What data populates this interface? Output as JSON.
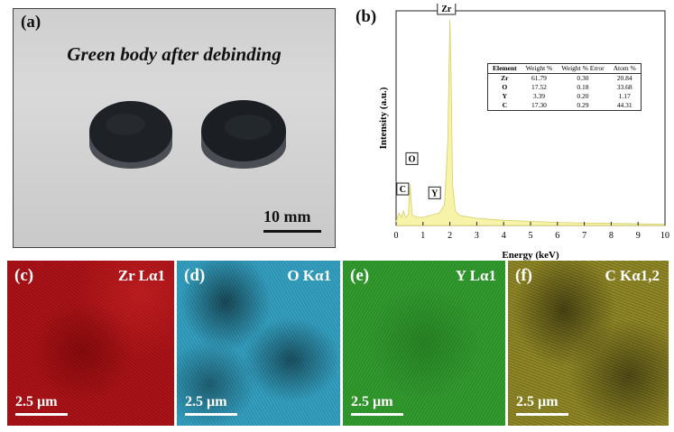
{
  "panel_a": {
    "label": "(a)",
    "title": "Green body after debinding",
    "scale_bar": "10 mm"
  },
  "panel_b": {
    "label": "(b)",
    "table": {
      "headers": [
        "Element",
        "Weight %",
        "Weight % Error",
        "Atom %"
      ],
      "rows": [
        [
          "Zr",
          "61.79",
          "0.30",
          "20.84"
        ],
        [
          "O",
          "17.52",
          "0.18",
          "33.68"
        ],
        [
          "Y",
          "3.39",
          "0.20",
          "1.17"
        ],
        [
          "C",
          "17.30",
          "0.29",
          "44.31"
        ]
      ]
    }
  },
  "chart_data": {
    "type": "line",
    "xlabel": "Energy (keV)",
    "ylabel": "Intensity (a.u.)",
    "xlim": [
      0,
      10
    ],
    "xticks": [
      "0",
      "1",
      "2",
      "3",
      "4",
      "5",
      "6",
      "7",
      "8",
      "9",
      "10"
    ],
    "fill_color": "#f7f3a8",
    "x": [
      0,
      0.1,
      0.2,
      0.28,
      0.35,
      0.45,
      0.52,
      0.6,
      0.8,
      1.0,
      1.3,
      1.6,
      1.8,
      1.92,
      2.0,
      2.04,
      2.1,
      2.2,
      2.35,
      2.5,
      3.0,
      3.5,
      4.0,
      5.0,
      6.0,
      7.0,
      8.0,
      9.0,
      10.0
    ],
    "y": [
      0.02,
      0.06,
      0.04,
      0.07,
      0.04,
      0.05,
      0.2,
      0.05,
      0.04,
      0.04,
      0.05,
      0.06,
      0.1,
      0.4,
      1.0,
      0.78,
      0.2,
      0.07,
      0.05,
      0.045,
      0.035,
      0.03,
      0.025,
      0.02,
      0.015,
      0.012,
      0.01,
      0.008,
      0.006
    ],
    "peaks": [
      {
        "label": "C",
        "x": 0.28,
        "y": 0.07
      },
      {
        "label": "O",
        "x": 0.52,
        "y": 0.2
      },
      {
        "label": "Y",
        "x": 1.6,
        "y": 0.06
      },
      {
        "label": "Zr",
        "x": 2.04,
        "y": 1.0
      }
    ]
  },
  "maps": [
    {
      "label": "(c)",
      "element": "Zr Lα1",
      "scale": "2.5 µm"
    },
    {
      "label": "(d)",
      "element": "O Kα1",
      "scale": "2.5 µm"
    },
    {
      "label": "(e)",
      "element": "Y Lα1",
      "scale": "2.5 µm"
    },
    {
      "label": "(f)",
      "element": "C Kα1,2",
      "scale": "2.5 µm"
    }
  ]
}
